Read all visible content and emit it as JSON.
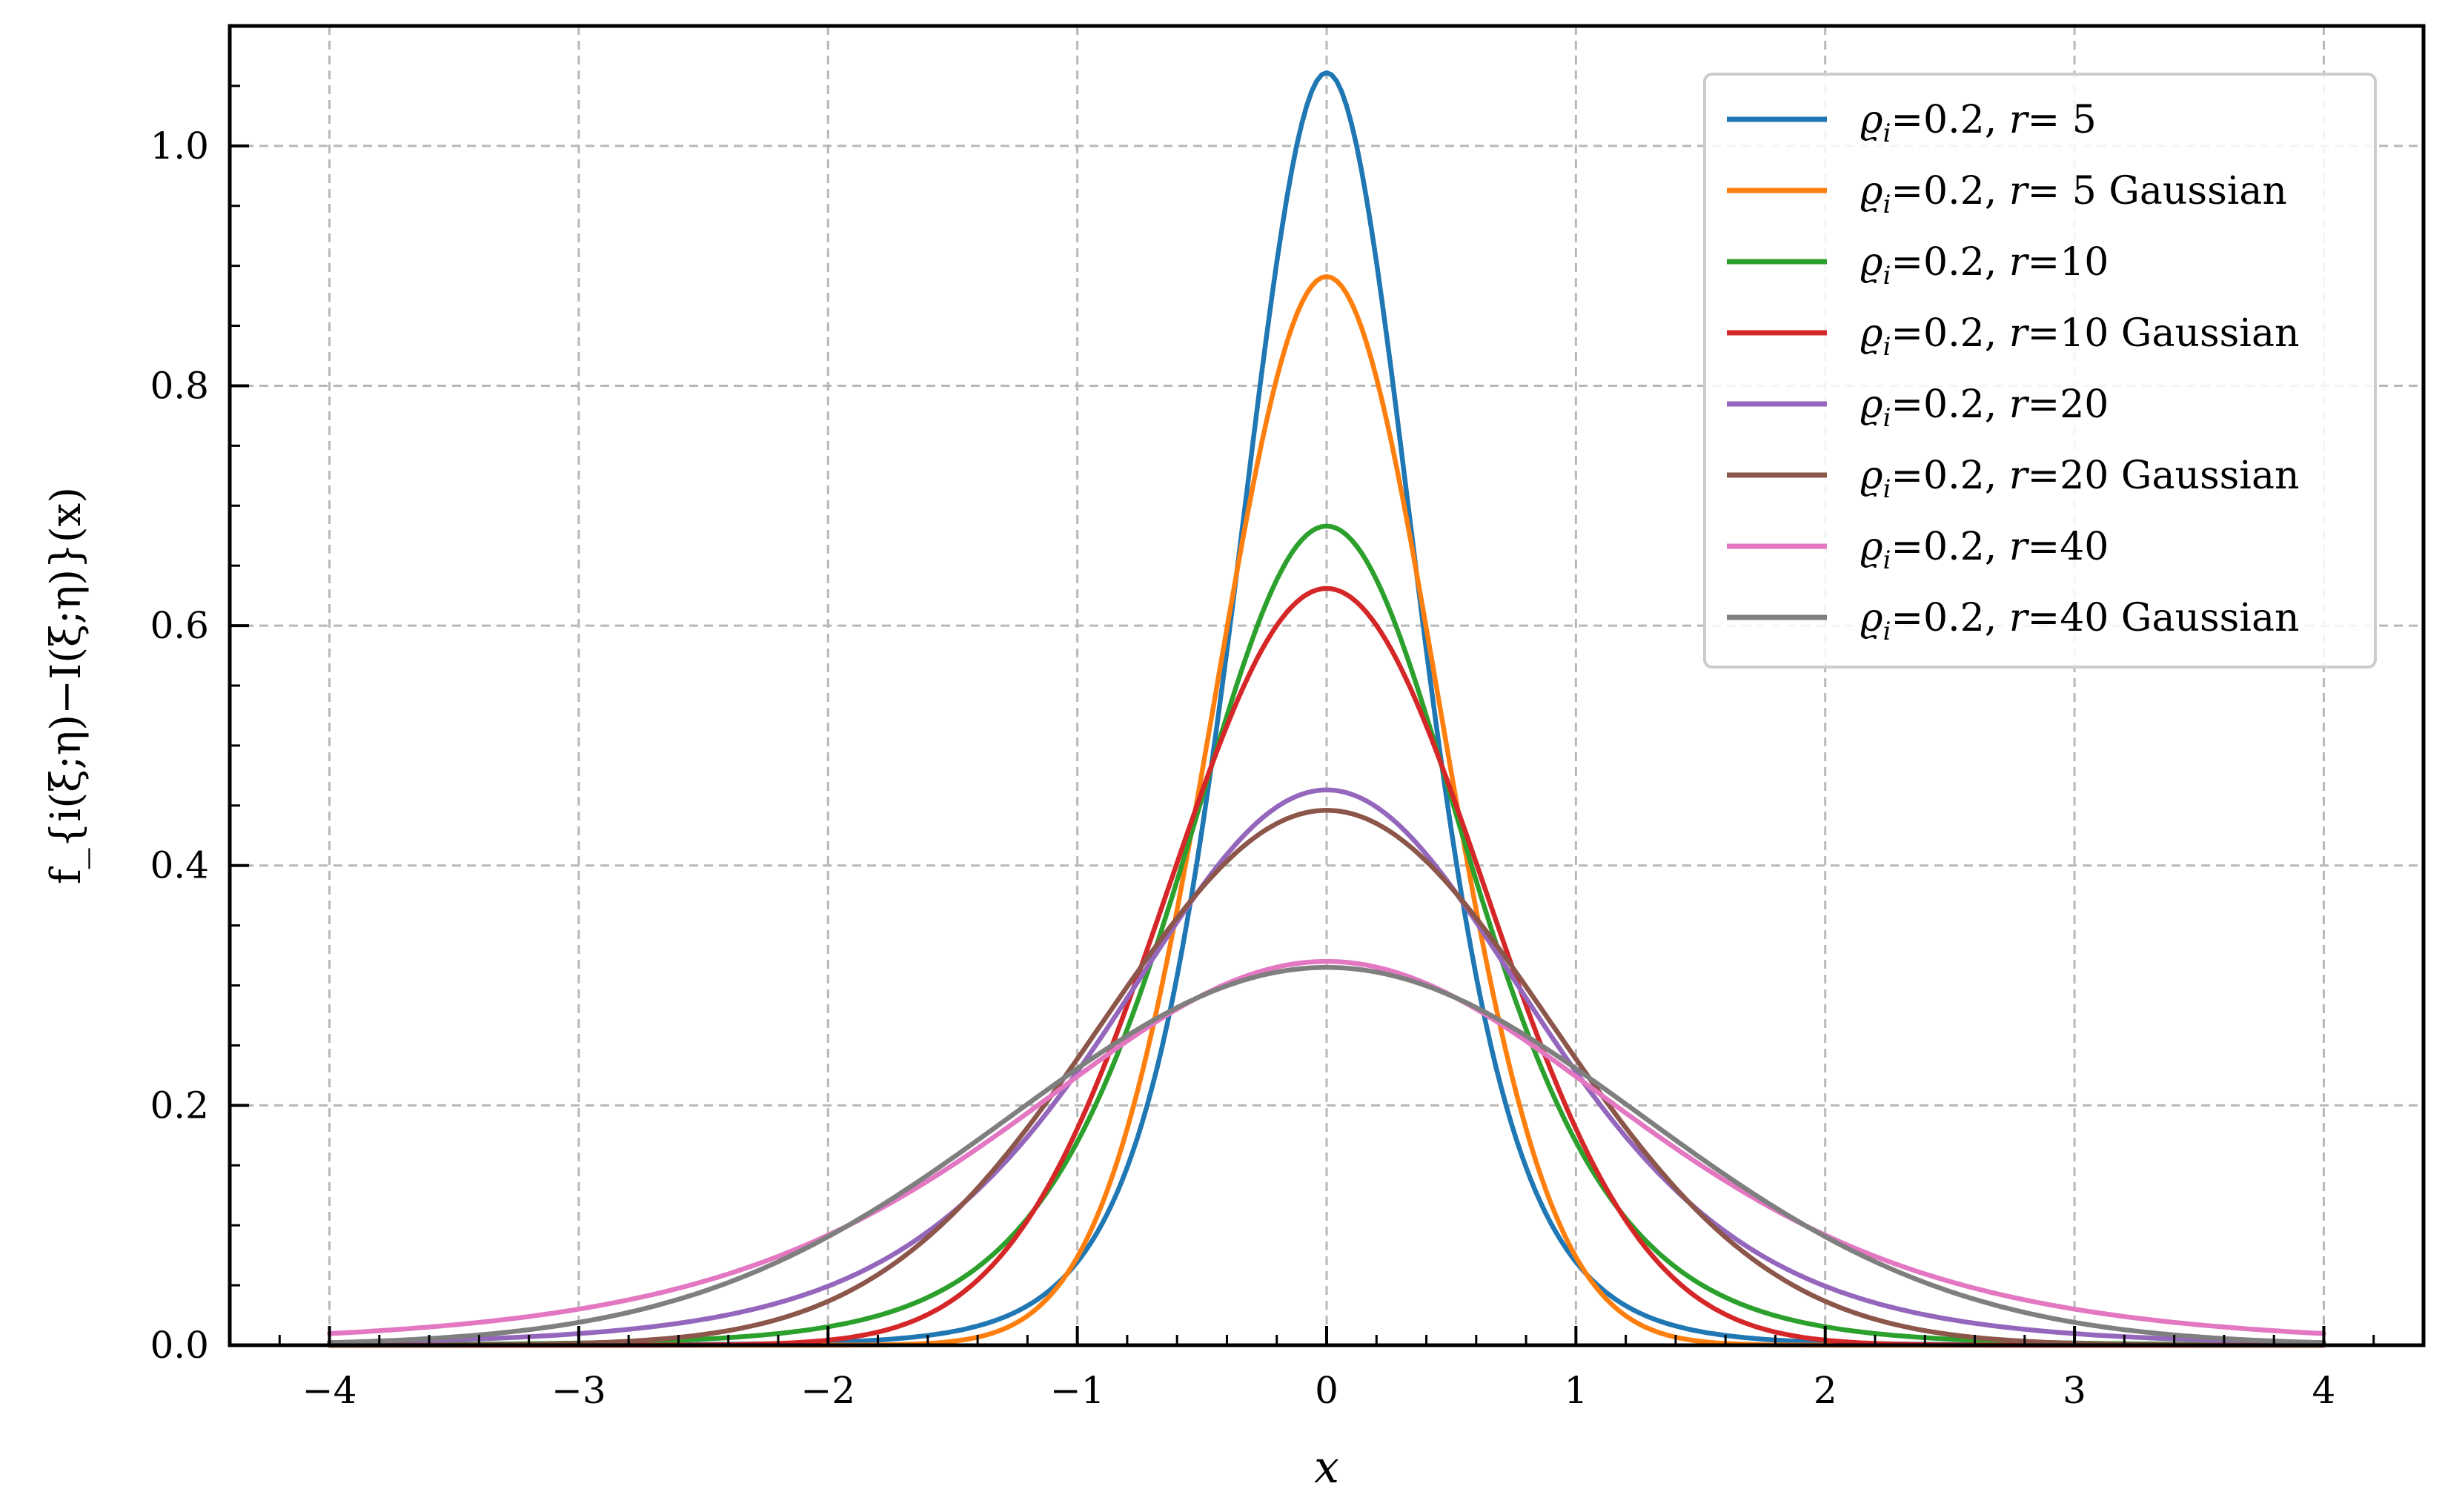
{
  "chart_data": {
    "type": "line",
    "xlabel": "x",
    "ylabel": "f_{i(ξ;η)−I(ξ;η)}(x)",
    "xlim": [
      -4.4,
      4.4
    ],
    "ylim": [
      0.0,
      1.1
    ],
    "x_ticks": [
      -4,
      -3,
      -2,
      -1,
      0,
      1,
      2,
      3,
      4
    ],
    "x_tick_labels": [
      "−4",
      "−3",
      "−2",
      "−1",
      "0",
      "1",
      "2",
      "3",
      "4"
    ],
    "y_ticks": [
      0.0,
      0.2,
      0.4,
      0.6,
      0.8,
      1.0
    ],
    "y_tick_labels": [
      "0.0",
      "0.2",
      "0.4",
      "0.6",
      "0.8",
      "1.0"
    ],
    "grid": true,
    "legend_position": "top-right",
    "series": [
      {
        "name": "ϱi=0.2, r= 5",
        "legend": {
          "rho": "ϱ",
          "sub": "i",
          "eq": "=0.2, ",
          "r": "r",
          "rest": "= 5"
        },
        "color": "#1f77b4",
        "x_range": [
          -4,
          4
        ],
        "peak": 1.061,
        "shape": "heavy-tailed",
        "sigma": 0.376
      },
      {
        "name": "ϱi=0.2, r= 5 Gaussian",
        "legend": {
          "rho": "ϱ",
          "sub": "i",
          "eq": "=0.2, ",
          "r": "r",
          "rest": "= 5 Gaussian"
        },
        "color": "#ff7f0e",
        "x_range": [
          -4,
          4
        ],
        "peak": 0.891,
        "shape": "gaussian",
        "sigma": 0.4477
      },
      {
        "name": "ϱi=0.2, r=10",
        "legend": {
          "rho": "ϱ",
          "sub": "i",
          "eq": "=0.2, ",
          "r": "r",
          "rest": "=10"
        },
        "color": "#2ca02c",
        "x_range": [
          -4,
          4
        ],
        "peak": 0.683,
        "shape": "heavy-tailed",
        "sigma": 0.584
      },
      {
        "name": "ϱi=0.2, r=10 Gaussian",
        "legend": {
          "rho": "ϱ",
          "sub": "i",
          "eq": "=0.2, ",
          "r": "r",
          "rest": "=10 Gaussian"
        },
        "color": "#d62728",
        "x_range": [
          -4,
          4
        ],
        "peak": 0.631,
        "shape": "gaussian",
        "sigma": 0.6322
      },
      {
        "name": "ϱi=0.2, r=20",
        "legend": {
          "rho": "ϱ",
          "sub": "i",
          "eq": "=0.2, ",
          "r": "r",
          "rest": "=20"
        },
        "color": "#9467bd",
        "x_range": [
          -4,
          4
        ],
        "peak": 0.463,
        "shape": "heavy-tailed",
        "sigma": 0.862
      },
      {
        "name": "ϱi=0.2, r=20 Gaussian",
        "legend": {
          "rho": "ϱ",
          "sub": "i",
          "eq": "=0.2, ",
          "r": "r",
          "rest": "=20 Gaussian"
        },
        "color": "#8c564b",
        "x_range": [
          -4,
          4
        ],
        "peak": 0.446,
        "shape": "gaussian",
        "sigma": 0.8945
      },
      {
        "name": "ϱi=0.2, r=40",
        "legend": {
          "rho": "ϱ",
          "sub": "i",
          "eq": "=0.2, ",
          "r": "r",
          "rest": "=40"
        },
        "color": "#e377c2",
        "x_range": [
          -4,
          4
        ],
        "peak": 0.32,
        "shape": "heavy-tailed",
        "sigma": 1.247
      },
      {
        "name": "ϱi=0.2, r=40 Gaussian",
        "legend": {
          "rho": "ϱ",
          "sub": "i",
          "eq": "=0.2, ",
          "r": "r",
          "rest": "=40 Gaussian"
        },
        "color": "#7f7f7f",
        "x_range": [
          -4,
          4
        ],
        "peak": 0.315,
        "shape": "gaussian",
        "sigma": 1.2665
      }
    ]
  }
}
